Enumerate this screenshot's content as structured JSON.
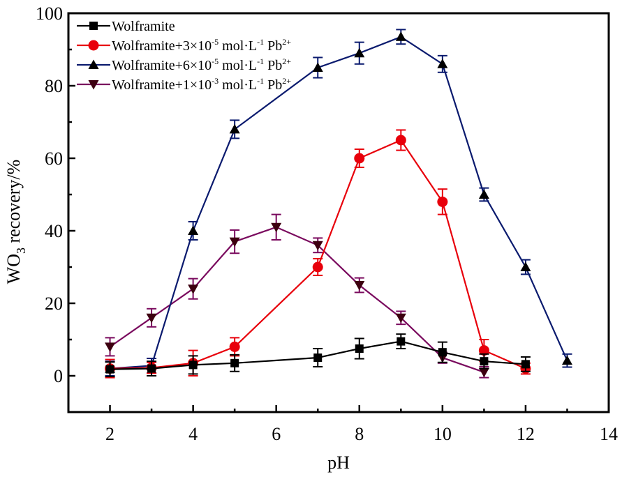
{
  "chart_data": {
    "type": "line",
    "title": "",
    "xlabel": "pH",
    "ylabel": "WO",
    "ylabel_subscript": "3",
    "ylabel_suffix": " recovery/%",
    "xlim": [
      1,
      14
    ],
    "ylim": [
      -10,
      100
    ],
    "xticks": [
      2,
      4,
      6,
      8,
      10,
      12,
      14
    ],
    "xminor": [
      3,
      5,
      7,
      9,
      11,
      13
    ],
    "yticks": [
      0,
      20,
      40,
      60,
      80,
      100
    ],
    "yminor": [
      10,
      30,
      50,
      70,
      90
    ],
    "grid": false,
    "legend_position": "top-left",
    "series": [
      {
        "name": "Wolframite",
        "legend": {
          "base": "Wolframite",
          "conc": "",
          "exp": "",
          "unit": "",
          "unit_exp": "",
          "ion": "",
          "ion_exp": ""
        },
        "color": "#000000",
        "marker": "square",
        "x": [
          2,
          3,
          4,
          5,
          7,
          8,
          9,
          10,
          11,
          12
        ],
        "y": [
          1.8,
          2.0,
          3.0,
          3.5,
          5.0,
          7.5,
          9.5,
          6.5,
          4.0,
          3.2
        ],
        "err": [
          2.0,
          2.0,
          2.5,
          2.3,
          2.5,
          2.8,
          2.0,
          2.8,
          2.0,
          2.0
        ]
      },
      {
        "name": "Wolframite+3×10-5 mol·L-1 Pb2+",
        "legend": {
          "base": "Wolframite+3",
          "conc": "×10",
          "exp": "-5",
          "unit": " mol·L",
          "unit_exp": "-1",
          "ion": " Pb",
          "ion_exp": "2+"
        },
        "color": "#e8000b",
        "marker": "circle",
        "x": [
          2,
          3,
          4,
          5,
          7,
          8,
          9,
          10,
          11,
          12
        ],
        "y": [
          2.0,
          2.2,
          3.5,
          8.0,
          30.0,
          60.0,
          65.0,
          48.0,
          7.0,
          2.0
        ],
        "err": [
          2.5,
          1.5,
          3.5,
          2.5,
          2.3,
          2.5,
          2.8,
          3.5,
          3.0,
          1.5
        ]
      },
      {
        "name": "Wolframite+6×10-5 mol·L-1 Pb2+",
        "legend": {
          "base": "Wolframite+6",
          "conc": "×10",
          "exp": "-5",
          "unit": " mol·L",
          "unit_exp": "-1",
          "ion": " Pb",
          "ion_exp": "2+"
        },
        "color": "#0a1a6e",
        "marker": "triangle-up",
        "x": [
          2,
          3,
          4,
          5,
          7,
          8,
          9,
          10,
          11,
          12,
          13
        ],
        "y": [
          2.0,
          2.8,
          40.0,
          68.0,
          85.0,
          89.0,
          93.5,
          86.0,
          50.0,
          30.0,
          4.2
        ],
        "err": [
          2.0,
          2.0,
          2.5,
          2.5,
          2.8,
          3.0,
          2.0,
          2.3,
          1.8,
          2.0,
          1.8
        ]
      },
      {
        "name": "Wolframite+1×10-3 mol·L-1 Pb2+",
        "legend": {
          "base": "Wolframite+1",
          "conc": "×10",
          "exp": "-3",
          "unit": " mol·L",
          "unit_exp": "-1",
          "ion": " Pb",
          "ion_exp": "2+"
        },
        "color": "#7a0a5e",
        "marker": "triangle-down",
        "x": [
          2,
          3,
          4,
          5,
          6,
          7,
          8,
          9,
          10,
          11
        ],
        "y": [
          8.0,
          16.0,
          24.0,
          37.0,
          41.0,
          36.0,
          25.0,
          16.0,
          5.0,
          1.0
        ],
        "err": [
          2.5,
          2.5,
          2.8,
          3.2,
          3.5,
          2.0,
          2.0,
          1.8,
          1.5,
          1.5
        ]
      }
    ]
  }
}
